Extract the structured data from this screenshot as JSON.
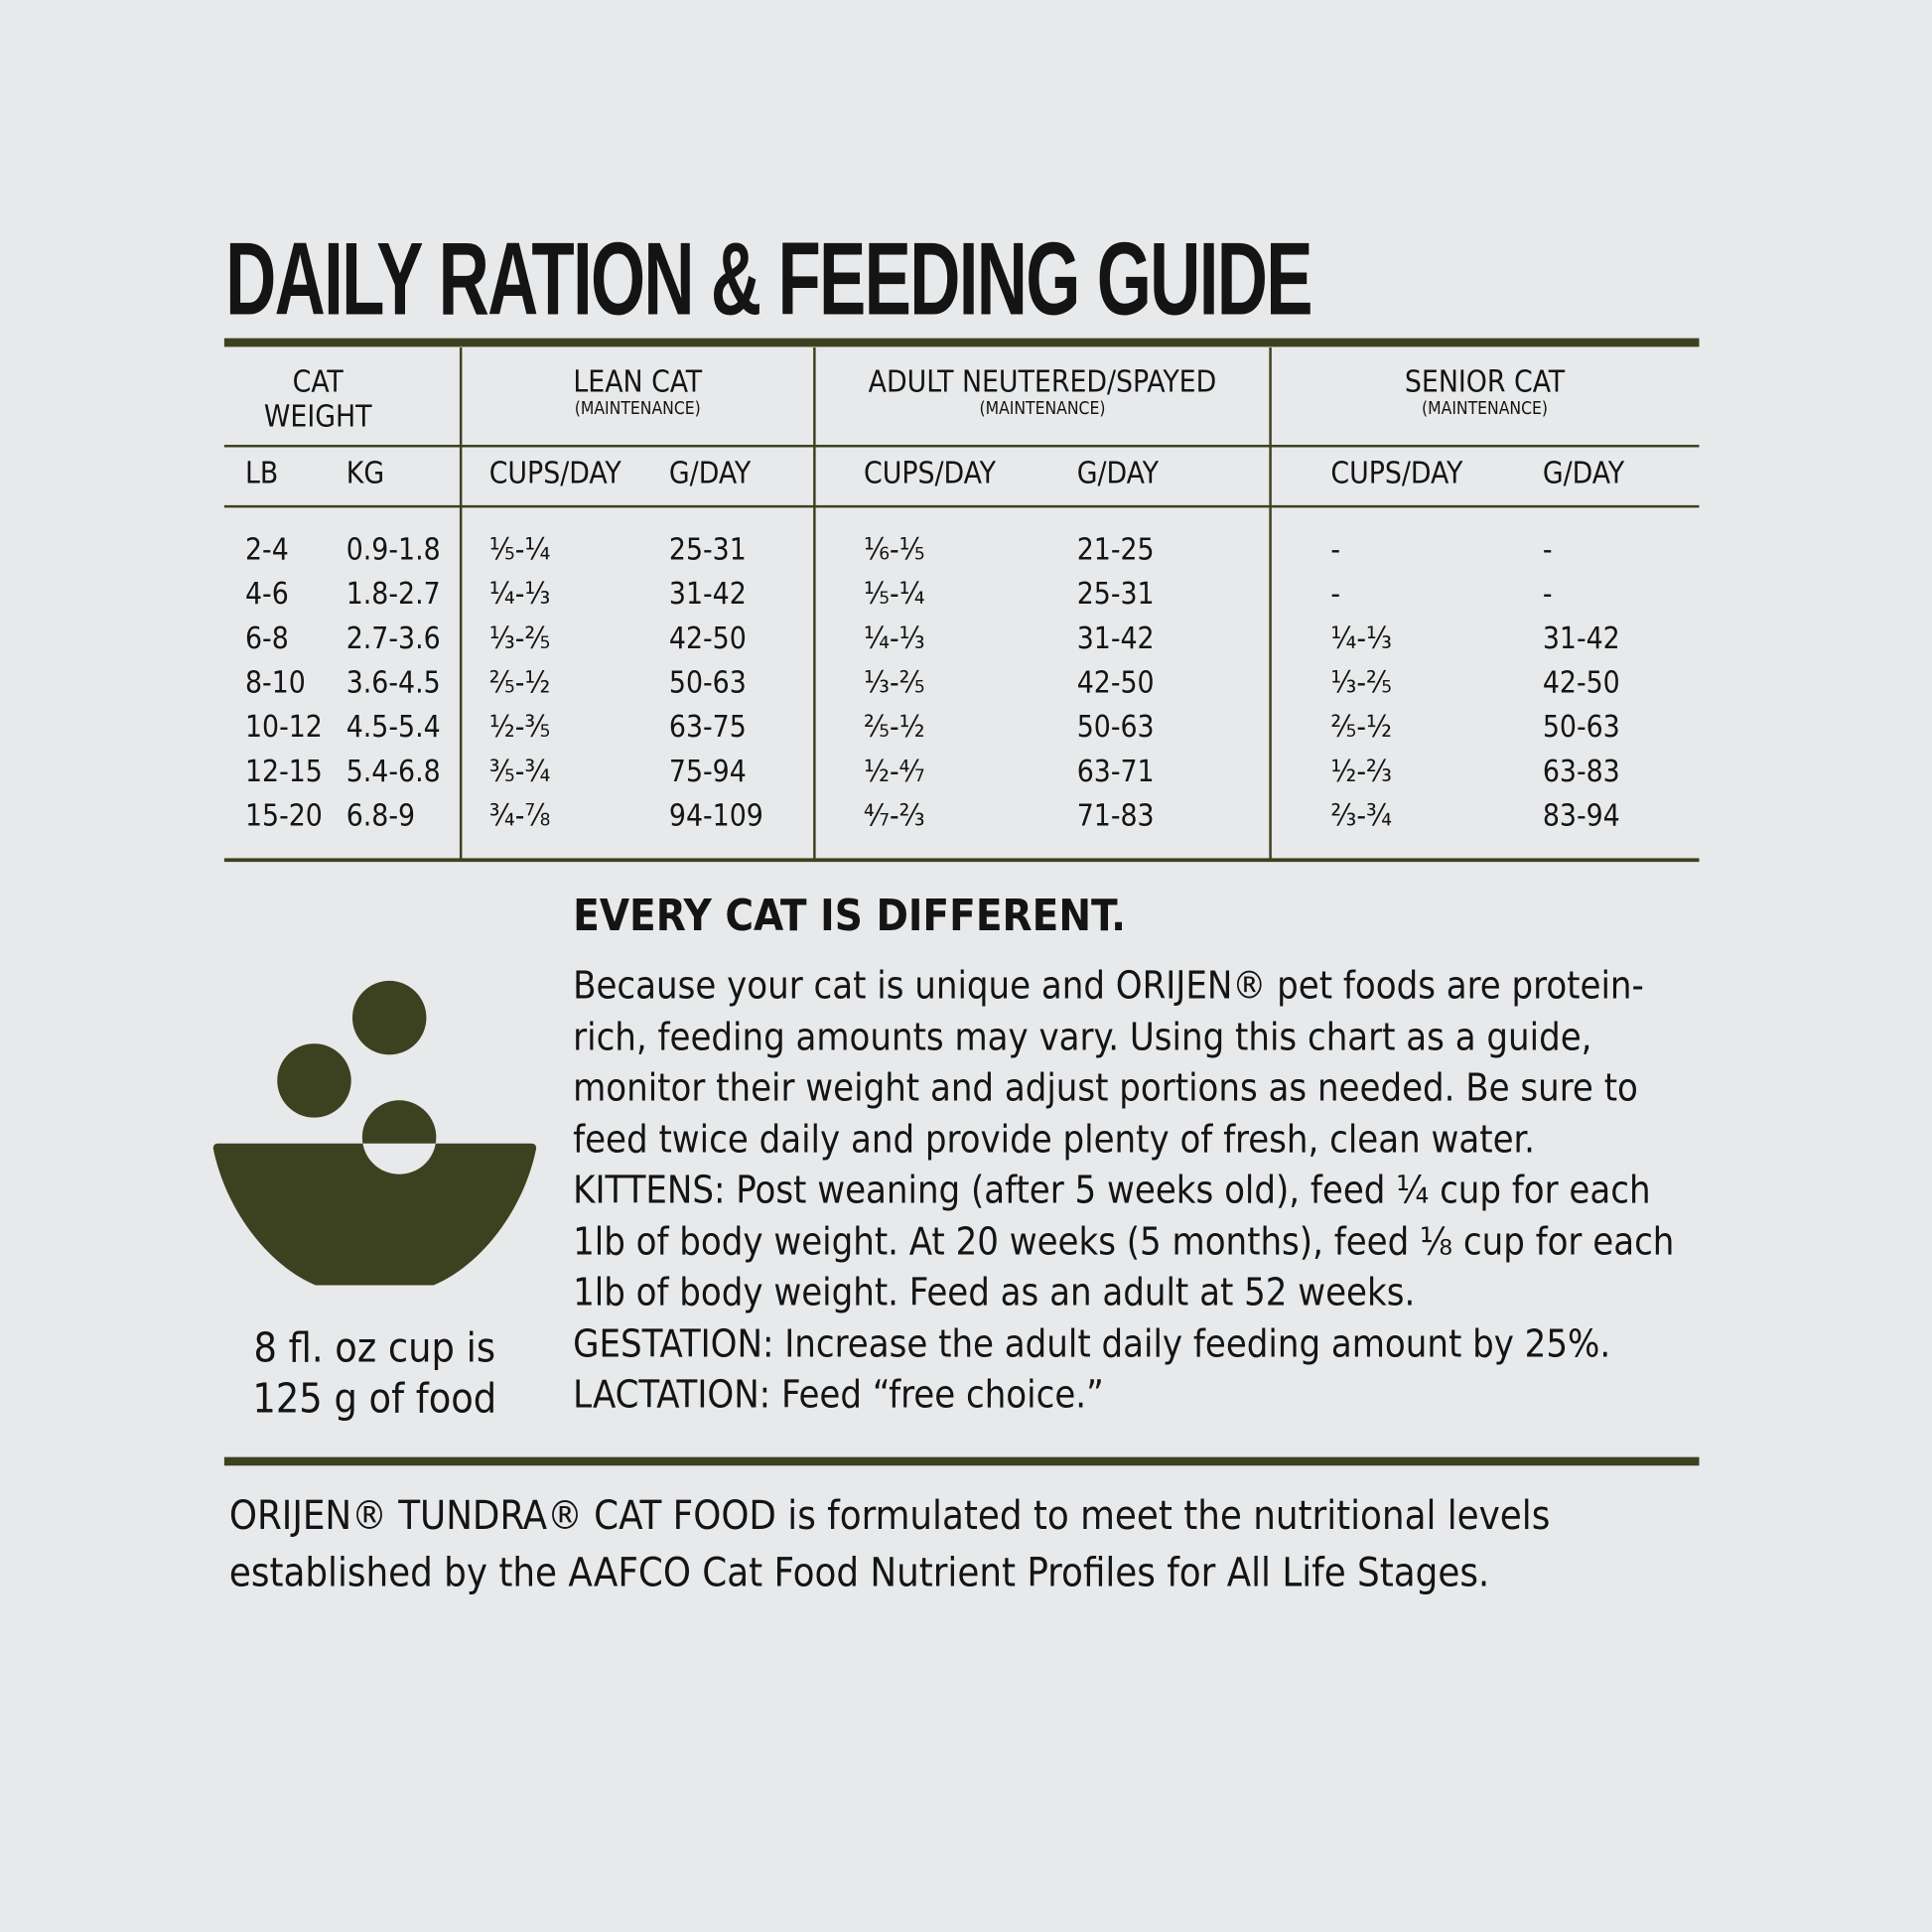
{
  "title": "DAILY RATION & FEEDING GUIDE",
  "table": {
    "groups": [
      {
        "title": "CAT WEIGHT"
      },
      {
        "title": "LEAN CAT",
        "subtitle": "(MAINTENANCE)"
      },
      {
        "title": "ADULT NEUTERED/SPAYED",
        "subtitle": "(MAINTENANCE)"
      },
      {
        "title": "SENIOR CAT",
        "subtitle": "(MAINTENANCE)"
      }
    ],
    "columns": [
      "LB",
      "KG",
      "CUPS/DAY",
      "G/DAY",
      "CUPS/DAY",
      "G/DAY",
      "CUPS/DAY",
      "G/DAY"
    ],
    "rows": [
      [
        "2-4",
        "0.9-1.8",
        "⅕-¼",
        "25-31",
        "⅙-⅕",
        "21-25",
        "-",
        "-"
      ],
      [
        "4-6",
        "1.8-2.7",
        "¼-⅓",
        "31-42",
        "⅕-¼",
        "25-31",
        "-",
        "-"
      ],
      [
        "6-8",
        "2.7-3.6",
        "⅓-⅖",
        "42-50",
        "¼-⅓",
        "31-42",
        "¼-⅓",
        "31-42"
      ],
      [
        "8-10",
        "3.6-4.5",
        "⅖-½",
        "50-63",
        "⅓-⅖",
        "42-50",
        "⅓-⅖",
        "42-50"
      ],
      [
        "10-12",
        "4.5-5.4",
        "½-⅗",
        "63-75",
        "⅖-½",
        "50-63",
        "⅖-½",
        "50-63"
      ],
      [
        "12-15",
        "5.4-6.8",
        "⅗-¾",
        "75-94",
        "½-⁴⁄₇",
        "63-71",
        "½-⅔",
        "63-83"
      ],
      [
        "15-20",
        "6.8-9",
        "¾-⅞",
        "94-109",
        "⁴⁄₇-⅔",
        "71-83",
        "⅔-¾",
        "83-94"
      ]
    ]
  },
  "note": {
    "heading": "EVERY CAT IS DIFFERENT.",
    "paragraphs": [
      "Because your cat is unique and ORIJEN® pet foods are protein-rich, feeding amounts may vary. Using this chart as a guide, monitor their weight and adjust portions as needed. Be sure to feed twice daily and provide plenty of fresh, clean water.",
      "KITTENS: Post weaning (after 5 weeks old), feed ¼ cup for each 1lb of body weight. At 20 weeks (5 months), feed ⅛ cup for each 1lb of body weight. Feed as an adult at 52 weeks.",
      "GESTATION: Increase the adult daily feeding amount by 25%.",
      "LACTATION: Feed “free choice.”"
    ]
  },
  "bowl_caption": [
    "8 fl. oz cup is",
    "125 g of food"
  ],
  "footer": [
    "ORIJEN® TUNDRA® CAT FOOD is formulated to meet the nutritional levels",
    "established by the AAFCO Cat Food Nutrient Profiles for All Life Stages."
  ]
}
